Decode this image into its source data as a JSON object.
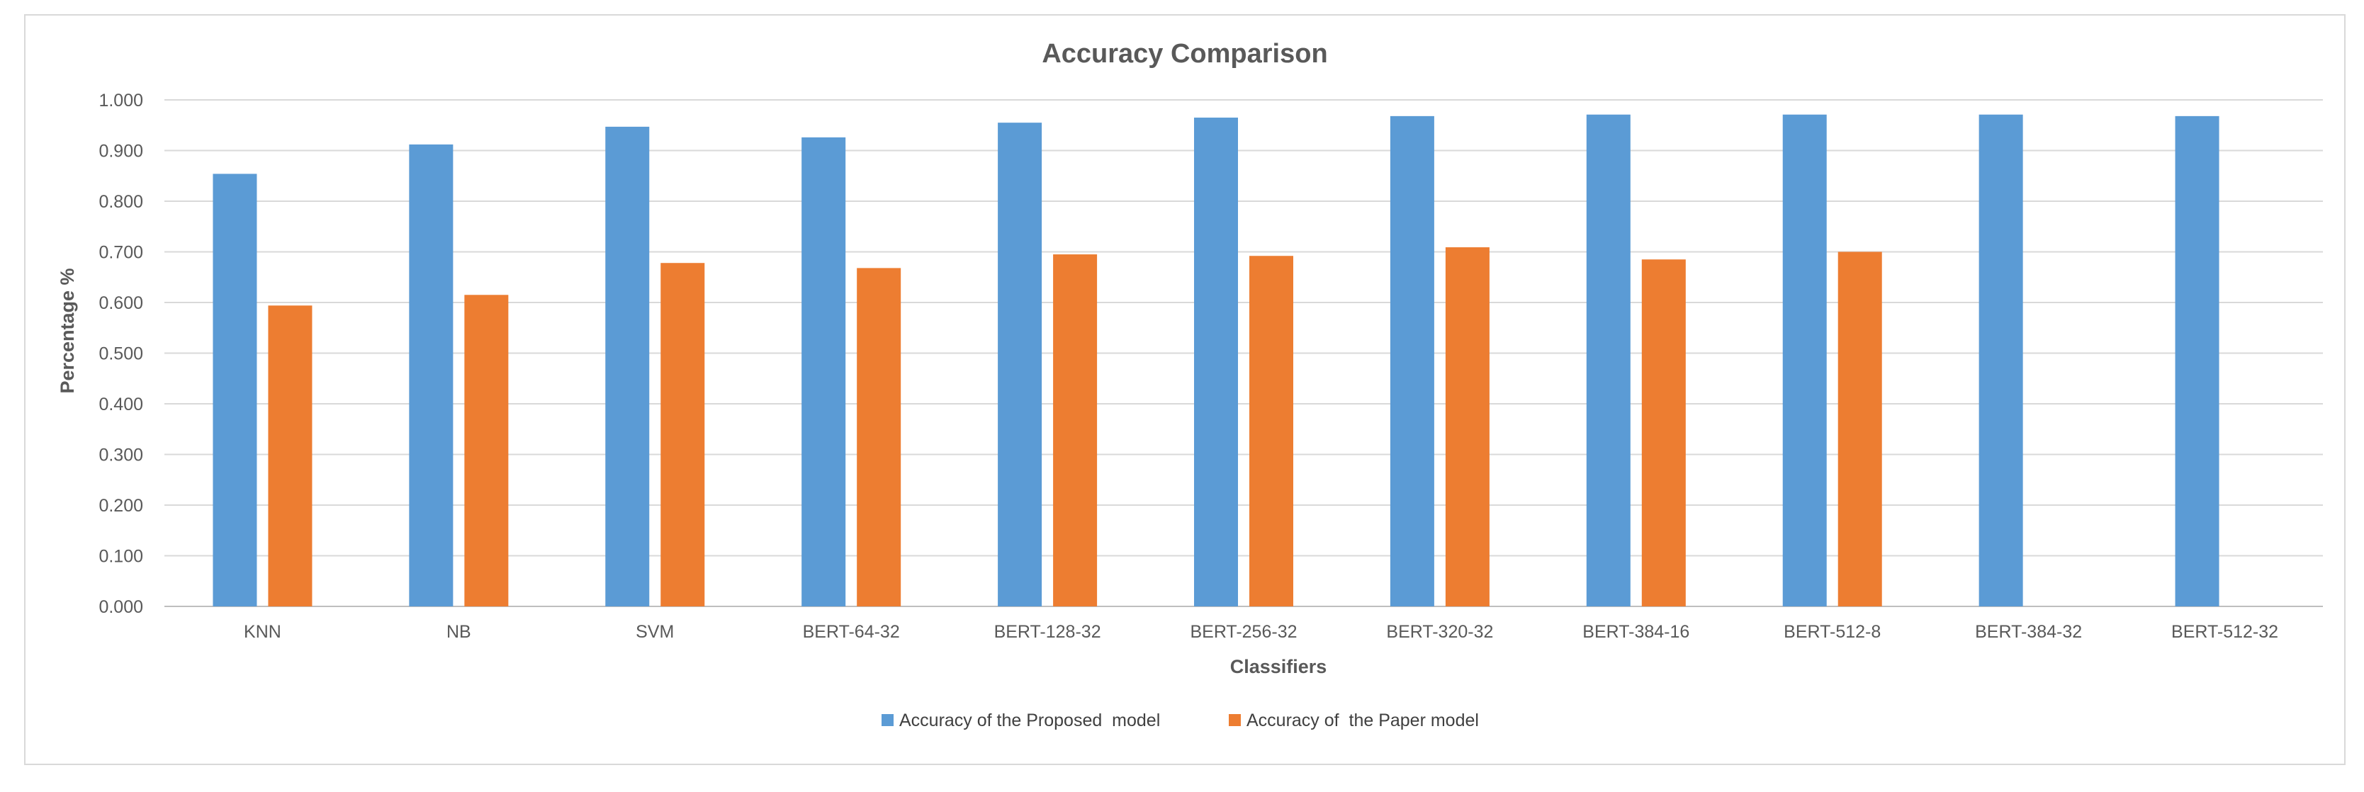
{
  "chart_data": {
    "type": "bar",
    "title": "Accuracy Comparison",
    "xlabel": "Classifiers",
    "ylabel": "Percentage %",
    "ylim": [
      0,
      1
    ],
    "yticks": [
      "0.000",
      "0.100",
      "0.200",
      "0.300",
      "0.400",
      "0.500",
      "0.600",
      "0.700",
      "0.800",
      "0.900",
      "1.000"
    ],
    "grid": true,
    "legend_position": "bottom",
    "categories": [
      "KNN",
      "NB",
      "SVM",
      "BERT-64-32",
      "BERT-128-32",
      "BERT-256-32",
      "BERT-320-32",
      "BERT-384-16",
      "BERT-512-8",
      "BERT-384-32",
      "BERT-512-32"
    ],
    "series": [
      {
        "name": "Accuracy of the Proposed  model",
        "color": "#5b9bd5",
        "values": [
          0.854,
          0.912,
          0.947,
          0.926,
          0.955,
          0.965,
          0.968,
          0.971,
          0.971,
          0.971,
          0.968
        ]
      },
      {
        "name": "Accuracy of  the Paper model",
        "color": "#ed7d31",
        "values": [
          0.594,
          0.615,
          0.678,
          0.668,
          0.695,
          0.692,
          0.709,
          0.685,
          0.7,
          null,
          null
        ]
      }
    ]
  }
}
